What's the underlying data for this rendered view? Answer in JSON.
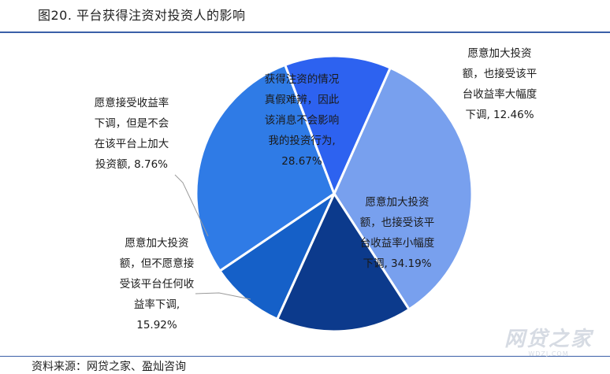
{
  "header": {
    "title": "图20. 平台获得注资对投资人的影响"
  },
  "footer": {
    "source": "资料来源：网贷之家、盈灿咨询"
  },
  "watermark": {
    "main": "网贷之家",
    "sub": "WDZJ.COM"
  },
  "chart_data": {
    "type": "pie",
    "title": "",
    "start_angle_deg": 24,
    "direction": "clockwise",
    "slices": [
      {
        "lines": [
          "愿意加大投资",
          "额，也接受该平",
          "台收益率小幅度",
          "下调, 34.19%"
        ],
        "value": 34.19,
        "color": "#78a0ee"
      },
      {
        "lines": [
          "愿意加大投资",
          "额，但不愿意接",
          "受该平台任何收",
          "益率下调,",
          "15.92%"
        ],
        "value": 15.92,
        "color": "#0c3a8c"
      },
      {
        "lines": [
          "愿意接受收益率",
          "下调，但是不会",
          "在该平台上加大",
          "投资额, 8.76%"
        ],
        "value": 8.76,
        "color": "#1560c8"
      },
      {
        "lines": [
          "获得注资的情况",
          "真假难辨，因此",
          "该消息不会影响",
          "我的投资行为,",
          "28.67%"
        ],
        "value": 28.67,
        "color": "#2f7be6"
      },
      {
        "lines": [
          "愿意加大投资",
          "额，也接受该平",
          "台收益率大幅度",
          "下调, 12.46%"
        ],
        "value": 12.46,
        "color": "#2d62f0"
      }
    ]
  }
}
